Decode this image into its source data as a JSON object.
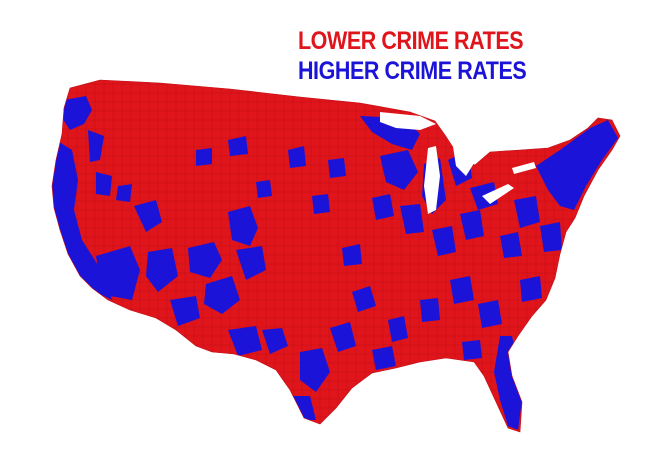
{
  "legend": {
    "lower": {
      "label": "LOWER CRIME RATES",
      "color": "#e0141b"
    },
    "higher": {
      "label": "HIGHER CRIME RATES",
      "color": "#1b14d8"
    }
  },
  "map": {
    "subject": "contiguous-united-states-counties",
    "base_color": "#e0141b",
    "high_color": "#1b14d8",
    "background": "#ffffff"
  }
}
